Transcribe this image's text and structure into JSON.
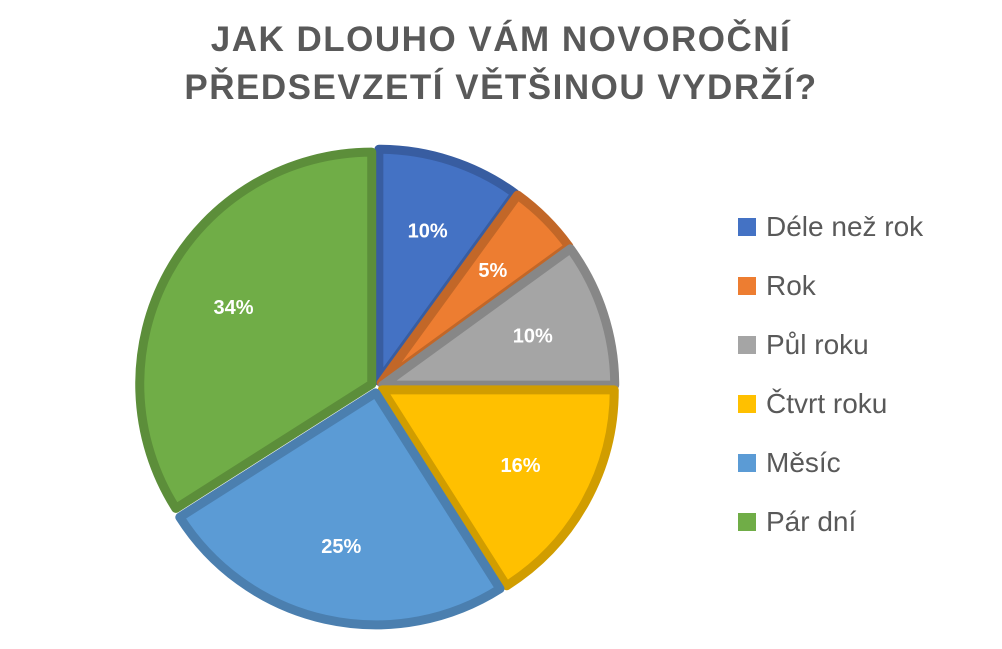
{
  "chart_data": {
    "type": "pie",
    "title": "JAK DLOUHO VÁM NOVOROČNÍ PŘEDSEVZETÍ VĚTŠINOU VYDRŽÍ?",
    "title_lines": [
      "JAK DLOUHO VÁM NOVOROČNÍ",
      "PŘEDSEVZETÍ VĚTŠINOU VYDRŽÍ?"
    ],
    "categories": [
      "Déle než rok",
      "Rok",
      "Půl roku",
      "Čtvrt roku",
      "Měsíc",
      "Pár dní"
    ],
    "values": [
      10,
      5,
      10,
      16,
      25,
      34
    ],
    "data_labels": [
      "10%",
      "5%",
      "10%",
      "16%",
      "25%",
      "34%"
    ],
    "colors": [
      "#4472C4",
      "#ED7D31",
      "#A5A5A5",
      "#FFC000",
      "#5B9BD5",
      "#70AD47"
    ],
    "legend_position": "right",
    "start_angle": "12 o'clock, clockwise"
  }
}
